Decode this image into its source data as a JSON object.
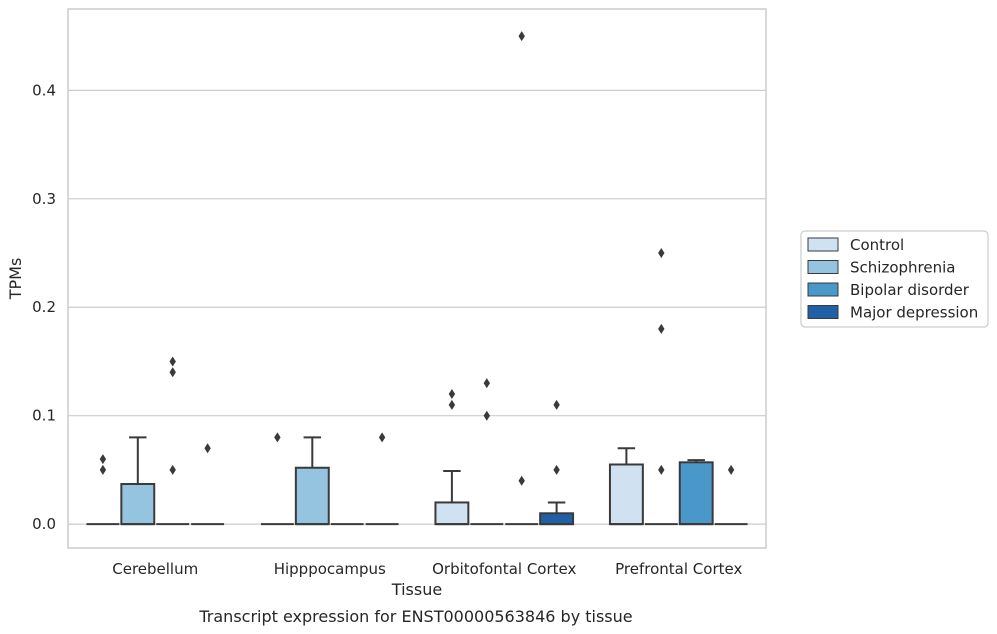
{
  "chart_data": {
    "type": "box",
    "caption": "Transcript expression for ENST00000563846 by tissue",
    "xlabel": "Tissue",
    "ylabel": "TPMs",
    "ylim": [
      -0.022,
      0.475
    ],
    "yticks": [
      "0.0",
      "0.1",
      "0.2",
      "0.3",
      "0.4"
    ],
    "ytick_values": [
      0.0,
      0.1,
      0.2,
      0.3,
      0.4
    ],
    "grid": "horizontal",
    "legend_position": "right",
    "categories": [
      "Cerebellum",
      "Hipppocampus",
      "Orbitofontal Cortex",
      "Prefrontal Cortex"
    ],
    "series": [
      {
        "name": "Control",
        "color": "#d0e1f2",
        "boxes": [
          {
            "q1": 0.0,
            "median": 0.0,
            "q3": 0.0,
            "whisker_low": 0.0,
            "whisker_high": 0.0,
            "outliers": [
              0.06,
              0.05
            ]
          },
          {
            "q1": 0.0,
            "median": 0.0,
            "q3": 0.0,
            "whisker_low": 0.0,
            "whisker_high": 0.0,
            "outliers": [
              0.08
            ]
          },
          {
            "q1": 0.0,
            "median": 0.0,
            "q3": 0.02,
            "whisker_low": 0.0,
            "whisker_high": 0.049,
            "outliers": [
              0.12,
              0.11
            ]
          },
          {
            "q1": 0.0,
            "median": 0.0,
            "q3": 0.055,
            "whisker_low": 0.0,
            "whisker_high": 0.07,
            "outliers": []
          }
        ]
      },
      {
        "name": "Schizophrenia",
        "color": "#94c4df",
        "boxes": [
          {
            "q1": 0.0,
            "median": 0.0,
            "q3": 0.037,
            "whisker_low": 0.0,
            "whisker_high": 0.08,
            "outliers": []
          },
          {
            "q1": 0.0,
            "median": 0.0,
            "q3": 0.052,
            "whisker_low": 0.0,
            "whisker_high": 0.08,
            "outliers": []
          },
          {
            "q1": 0.0,
            "median": 0.0,
            "q3": 0.0,
            "whisker_low": 0.0,
            "whisker_high": 0.0,
            "outliers": [
              0.13,
              0.1
            ]
          },
          {
            "q1": 0.0,
            "median": 0.0,
            "q3": 0.0,
            "whisker_low": 0.0,
            "whisker_high": 0.0,
            "outliers": [
              0.25,
              0.18,
              0.05
            ]
          }
        ]
      },
      {
        "name": "Bipolar disorder",
        "color": "#4a98c9",
        "boxes": [
          {
            "q1": 0.0,
            "median": 0.0,
            "q3": 0.0,
            "whisker_low": 0.0,
            "whisker_high": 0.0,
            "outliers": [
              0.15,
              0.14,
              0.05
            ]
          },
          {
            "q1": 0.0,
            "median": 0.0,
            "q3": 0.0,
            "whisker_low": 0.0,
            "whisker_high": 0.0,
            "outliers": []
          },
          {
            "q1": 0.0,
            "median": 0.0,
            "q3": 0.0,
            "whisker_low": 0.0,
            "whisker_high": 0.0,
            "outliers": [
              0.45,
              0.04
            ]
          },
          {
            "q1": 0.0,
            "median": 0.0,
            "q3": 0.057,
            "whisker_low": 0.0,
            "whisker_high": 0.059,
            "outliers": []
          }
        ]
      },
      {
        "name": "Major depression",
        "color": "#2060a7",
        "boxes": [
          {
            "q1": 0.0,
            "median": 0.0,
            "q3": 0.0,
            "whisker_low": 0.0,
            "whisker_high": 0.0,
            "outliers": [
              0.07
            ]
          },
          {
            "q1": 0.0,
            "median": 0.0,
            "q3": 0.0,
            "whisker_low": 0.0,
            "whisker_high": 0.0,
            "outliers": [
              0.08
            ]
          },
          {
            "q1": 0.0,
            "median": 0.0,
            "q3": 0.01,
            "whisker_low": 0.0,
            "whisker_high": 0.02,
            "outliers": [
              0.11,
              0.05
            ]
          },
          {
            "q1": 0.0,
            "median": 0.0,
            "q3": 0.0,
            "whisker_low": 0.0,
            "whisker_high": 0.0,
            "outliers": [
              0.05
            ]
          }
        ]
      }
    ]
  }
}
